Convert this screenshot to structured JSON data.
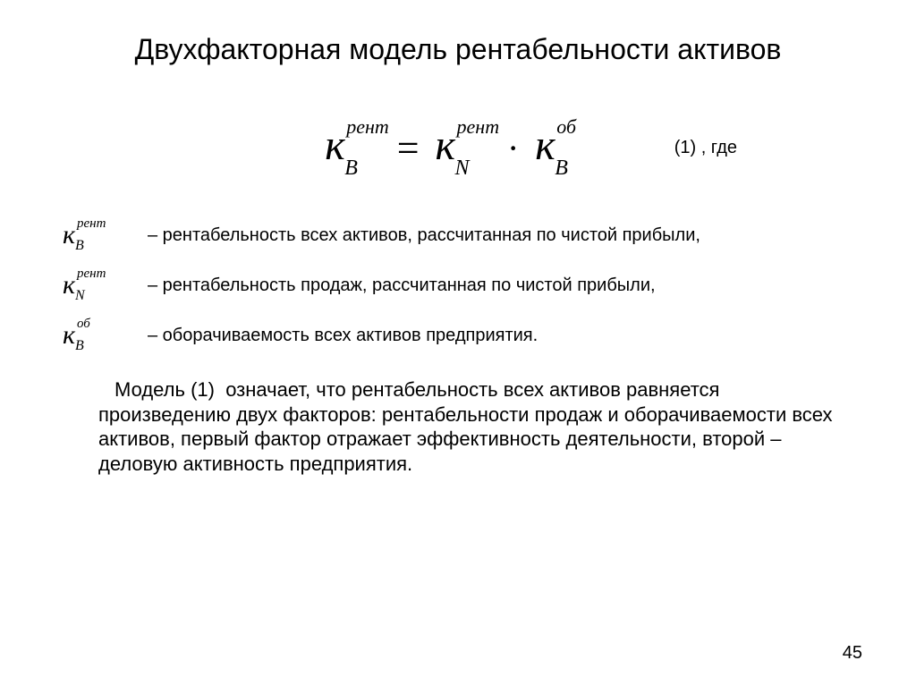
{
  "title": "Двухфакторная модель рентабельности активов",
  "formula": {
    "lhs": {
      "base": "к",
      "sub": "B",
      "sup": "рент"
    },
    "rhs1": {
      "base": "к",
      "sub": "N",
      "sup": "рент"
    },
    "rhs2": {
      "base": "к",
      "sub": "B",
      "sup": "об"
    },
    "label": "(1) , где"
  },
  "definitions": [
    {
      "sym": {
        "base": "к",
        "sub": "B",
        "sup": "рент"
      },
      "text": "– рентабельность всех активов, рассчитанная по чистой прибыли,"
    },
    {
      "sym": {
        "base": "к",
        "sub": "N",
        "sup": "рент"
      },
      "text": "– рентабельность продаж, рассчитанная по чистой прибыли,"
    },
    {
      "sym": {
        "base": "к",
        "sub": "B",
        "sup": "об"
      },
      "text": "– оборачиваемость всех активов предприятия."
    }
  ],
  "paragraph": "Модель (1)  означает, что рентабельность всех активов равняется произведению двух факторов: рентабельности продаж и оборачиваемости всех активов, первый фактор отражает эффективность деятельности, второй – деловую активность предприятия.",
  "page_number": "45",
  "colors": {
    "background": "#ffffff",
    "text": "#000000"
  },
  "typography": {
    "title_fontsize": 32,
    "formula_fontsize": 48,
    "body_fontsize": 20,
    "paragraph_fontsize": 22,
    "font_family_body": "Arial",
    "font_family_math": "Times New Roman"
  }
}
